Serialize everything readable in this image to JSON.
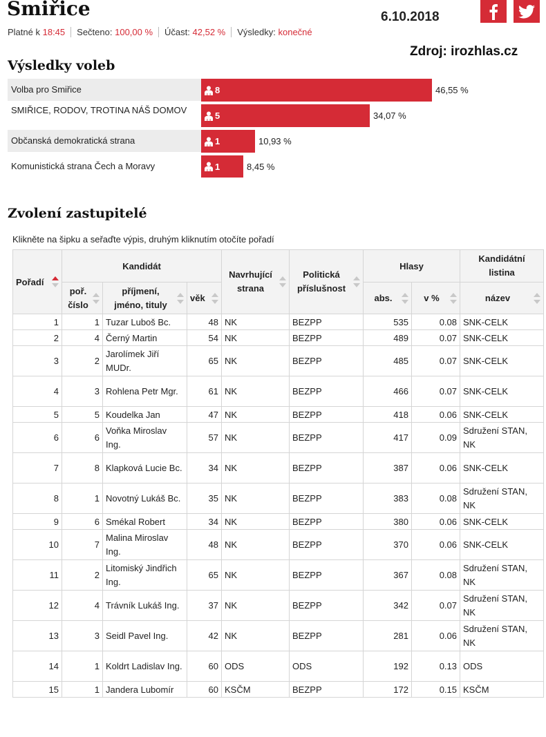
{
  "header": {
    "town": "Smiřice",
    "date": "6.10.2018",
    "source": "Zdroj: irozhlas.cz",
    "facebook_icon": "facebook-icon",
    "twitter_icon": "twitter-icon"
  },
  "status": {
    "valid_label": "Platné k",
    "valid_value": "18:45",
    "counted_label": "Sečteno:",
    "counted_value": "100,00 %",
    "turnout_label": "Účast:",
    "turnout_value": "42,52 %",
    "results_label": "Výsledky:",
    "results_value": "konečné"
  },
  "results": {
    "heading": "Výsledky voleb",
    "parties": [
      {
        "name": "Volba pro Smiřice",
        "seats": "8",
        "percent": "46,55 %",
        "share": 46.55
      },
      {
        "name": "SMIŘICE, RODOV, TROTINA NÁŠ DOMOV",
        "seats": "5",
        "percent": "34,07 %",
        "share": 34.07
      },
      {
        "name": "Občanská demokratická strana",
        "seats": "1",
        "percent": "10,93 %",
        "share": 10.93
      },
      {
        "name": "Komunistická strana Čech a Moravy",
        "seats": "1",
        "percent": "8,45 %",
        "share": 8.45
      }
    ]
  },
  "elected": {
    "heading": "Zvolení zastupitelé",
    "hint": "Klikněte na šipku a seřaďte výpis, druhým kliknutím otočíte pořadí",
    "headers": {
      "poradi": "Pořadí",
      "kandidat": "Kandidát",
      "por_cislo_1": "poř.",
      "por_cislo_2": "číslo",
      "jmeno_1": "příjmení,",
      "jmeno_2": "jméno, tituly",
      "vek": "věk",
      "navrhujici_1": "Navrhující",
      "navrhujici_2": "strana",
      "politicka_1": "Politická",
      "politicka_2": "příslušnost",
      "hlasy": "Hlasy",
      "abs": "abs.",
      "vpct": "v %",
      "listina_1": "Kandidátní",
      "listina_2": "listina",
      "nazev": "název"
    },
    "rows": [
      {
        "poradi": "1",
        "cislo": "1",
        "jmeno": "Tuzar Luboš Bc.",
        "vek": "48",
        "navrh": "NK",
        "polit": "BEZPP",
        "abs": "535",
        "pct": "0.08",
        "listina": "SNK-CELK"
      },
      {
        "poradi": "2",
        "cislo": "4",
        "jmeno": "Černý Martin",
        "vek": "54",
        "navrh": "NK",
        "polit": "BEZPP",
        "abs": "489",
        "pct": "0.07",
        "listina": "SNK-CELK"
      },
      {
        "poradi": "3",
        "cislo": "2",
        "jmeno": "Jarolímek Jiří MUDr.",
        "vek": "65",
        "navrh": "NK",
        "polit": "BEZPP",
        "abs": "485",
        "pct": "0.07",
        "listina": "SNK-CELK"
      },
      {
        "poradi": "4",
        "cislo": "3",
        "jmeno": "Rohlena Petr Mgr.",
        "vek": "61",
        "navrh": "NK",
        "polit": "BEZPP",
        "abs": "466",
        "pct": "0.07",
        "listina": "SNK-CELK"
      },
      {
        "poradi": "5",
        "cislo": "5",
        "jmeno": "Koudelka Jan",
        "vek": "47",
        "navrh": "NK",
        "polit": "BEZPP",
        "abs": "418",
        "pct": "0.06",
        "listina": "SNK-CELK"
      },
      {
        "poradi": "6",
        "cislo": "6",
        "jmeno": "Voňka Miroslav Ing.",
        "vek": "57",
        "navrh": "NK",
        "polit": "BEZPP",
        "abs": "417",
        "pct": "0.09",
        "listina": "Sdružení STAN, NK"
      },
      {
        "poradi": "7",
        "cislo": "8",
        "jmeno": "Klapková Lucie Bc.",
        "vek": "34",
        "navrh": "NK",
        "polit": "BEZPP",
        "abs": "387",
        "pct": "0.06",
        "listina": "SNK-CELK"
      },
      {
        "poradi": "8",
        "cislo": "1",
        "jmeno": "Novotný Lukáš Bc.",
        "vek": "35",
        "navrh": "NK",
        "polit": "BEZPP",
        "abs": "383",
        "pct": "0.08",
        "listina": "Sdružení STAN, NK"
      },
      {
        "poradi": "9",
        "cislo": "6",
        "jmeno": "Smékal Robert",
        "vek": "34",
        "navrh": "NK",
        "polit": "BEZPP",
        "abs": "380",
        "pct": "0.06",
        "listina": "SNK-CELK"
      },
      {
        "poradi": "10",
        "cislo": "7",
        "jmeno": "Malina Miroslav Ing.",
        "vek": "48",
        "navrh": "NK",
        "polit": "BEZPP",
        "abs": "370",
        "pct": "0.06",
        "listina": "SNK-CELK"
      },
      {
        "poradi": "11",
        "cislo": "2",
        "jmeno": "Litomiský Jindřich Ing.",
        "vek": "65",
        "navrh": "NK",
        "polit": "BEZPP",
        "abs": "367",
        "pct": "0.08",
        "listina": "Sdružení STAN, NK"
      },
      {
        "poradi": "12",
        "cislo": "4",
        "jmeno": "Trávník Lukáš Ing.",
        "vek": "37",
        "navrh": "NK",
        "polit": "BEZPP",
        "abs": "342",
        "pct": "0.07",
        "listina": "Sdružení STAN, NK"
      },
      {
        "poradi": "13",
        "cislo": "3",
        "jmeno": "Seidl Pavel Ing.",
        "vek": "42",
        "navrh": "NK",
        "polit": "BEZPP",
        "abs": "281",
        "pct": "0.06",
        "listina": "Sdružení STAN, NK"
      },
      {
        "poradi": "14",
        "cislo": "1",
        "jmeno": "Koldrt Ladislav Ing.",
        "vek": "60",
        "navrh": "ODS",
        "polit": "ODS",
        "abs": "192",
        "pct": "0.13",
        "listina": "ODS"
      },
      {
        "poradi": "15",
        "cislo": "1",
        "jmeno": "Jandera Lubomír",
        "vek": "60",
        "navrh": "KSČM",
        "polit": "BEZPP",
        "abs": "172",
        "pct": "0.15",
        "listina": "KSČM"
      }
    ]
  },
  "colors": {
    "accent": "#d52b36"
  }
}
